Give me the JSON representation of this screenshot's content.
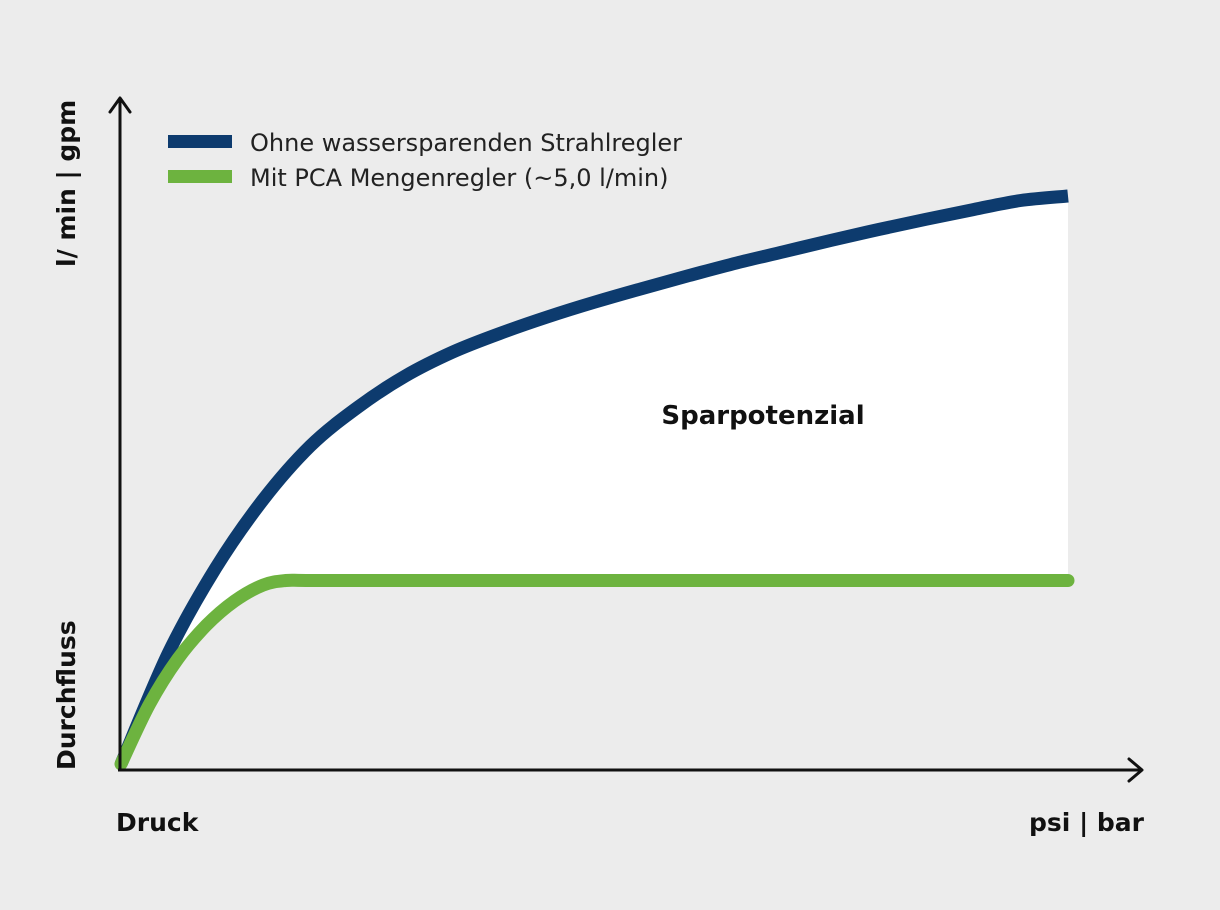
{
  "chart_data": {
    "type": "area",
    "title": "",
    "xlabel": "Druck",
    "xunit": "psi | bar",
    "ylabel": "Durchfluss",
    "yunit": "l/ min | gpm",
    "xlim": [
      0,
      100
    ],
    "ylim": [
      0,
      100
    ],
    "grid": false,
    "legend_position": "top-left",
    "axis_ticks": false,
    "series": [
      {
        "name": "Ohne wassersparenden Strahlregler",
        "color": "#0d3b6e",
        "x": [
          0,
          5,
          10,
          15,
          20,
          25,
          30,
          35,
          40,
          45,
          50,
          55,
          60,
          65,
          70,
          75,
          80,
          85,
          90,
          95,
          100
        ],
        "y": [
          0,
          19.5,
          34.5,
          46.5,
          56,
          62.8,
          68.3,
          72.5,
          75.8,
          78.7,
          81.3,
          83.7,
          86,
          88.2,
          90.2,
          92.2,
          94.1,
          95.9,
          97.6,
          99.2,
          100
        ]
      },
      {
        "name": "Mit PCA Mengenregler (~5,0 l/min)",
        "color": "#6db33f",
        "x": [
          0,
          3,
          6,
          9,
          12,
          15,
          17.4,
          20,
          30,
          40,
          50,
          60,
          70,
          80,
          90,
          100
        ],
        "y": [
          0,
          10.5,
          18.5,
          24.4,
          28.7,
          31.5,
          32.3,
          32.3,
          32.3,
          32.3,
          32.3,
          32.3,
          32.3,
          32.3,
          32.3,
          32.3
        ]
      }
    ],
    "shaded_region": {
      "label": "Sparpotenzial",
      "between": [
        "Ohne wassersparenden Strahlregler",
        "Mit PCA Mengenregler (~5,0 l/min)"
      ],
      "color": "#ffffff"
    },
    "axis_color": "#111111",
    "background": "#ececec"
  }
}
